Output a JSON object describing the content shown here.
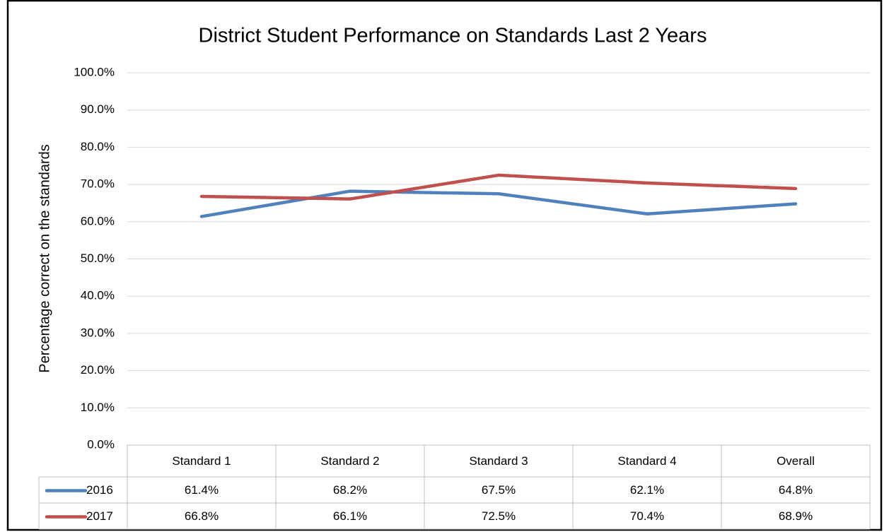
{
  "chart_data": {
    "type": "line",
    "title": "District Student Performance on Standards Last 2 Years",
    "y_label": "Percentage correct on the standards",
    "categories": [
      "Standard 1",
      "Standard 2",
      "Standard 3",
      "Standard 4",
      "Overall"
    ],
    "series": [
      {
        "name": "2016",
        "color": "#4f81bd",
        "values": [
          61.4,
          68.2,
          67.5,
          62.1,
          64.8
        ],
        "value_labels": [
          "61.4%",
          "68.2%",
          "67.5%",
          "62.1%",
          "64.8%"
        ]
      },
      {
        "name": "2017",
        "color": "#c0504d",
        "values": [
          66.8,
          66.1,
          72.5,
          70.4,
          68.9
        ],
        "value_labels": [
          "66.8%",
          "66.1%",
          "72.5%",
          "70.4%",
          "68.9%"
        ]
      }
    ],
    "ylim": [
      0,
      100
    ],
    "yticks": [
      {
        "value": 0,
        "label": "0.0%"
      },
      {
        "value": 10,
        "label": "10.0%"
      },
      {
        "value": 20,
        "label": "20.0%"
      },
      {
        "value": 30,
        "label": "30.0%"
      },
      {
        "value": 40,
        "label": "40.0%"
      },
      {
        "value": 50,
        "label": "50.0%"
      },
      {
        "value": 60,
        "label": "60.0%"
      },
      {
        "value": 70,
        "label": "70.0%"
      },
      {
        "value": 80,
        "label": "80.0%"
      },
      {
        "value": 90,
        "label": "90.0%"
      },
      {
        "value": 100,
        "label": "100.0%"
      }
    ],
    "grid": true
  }
}
